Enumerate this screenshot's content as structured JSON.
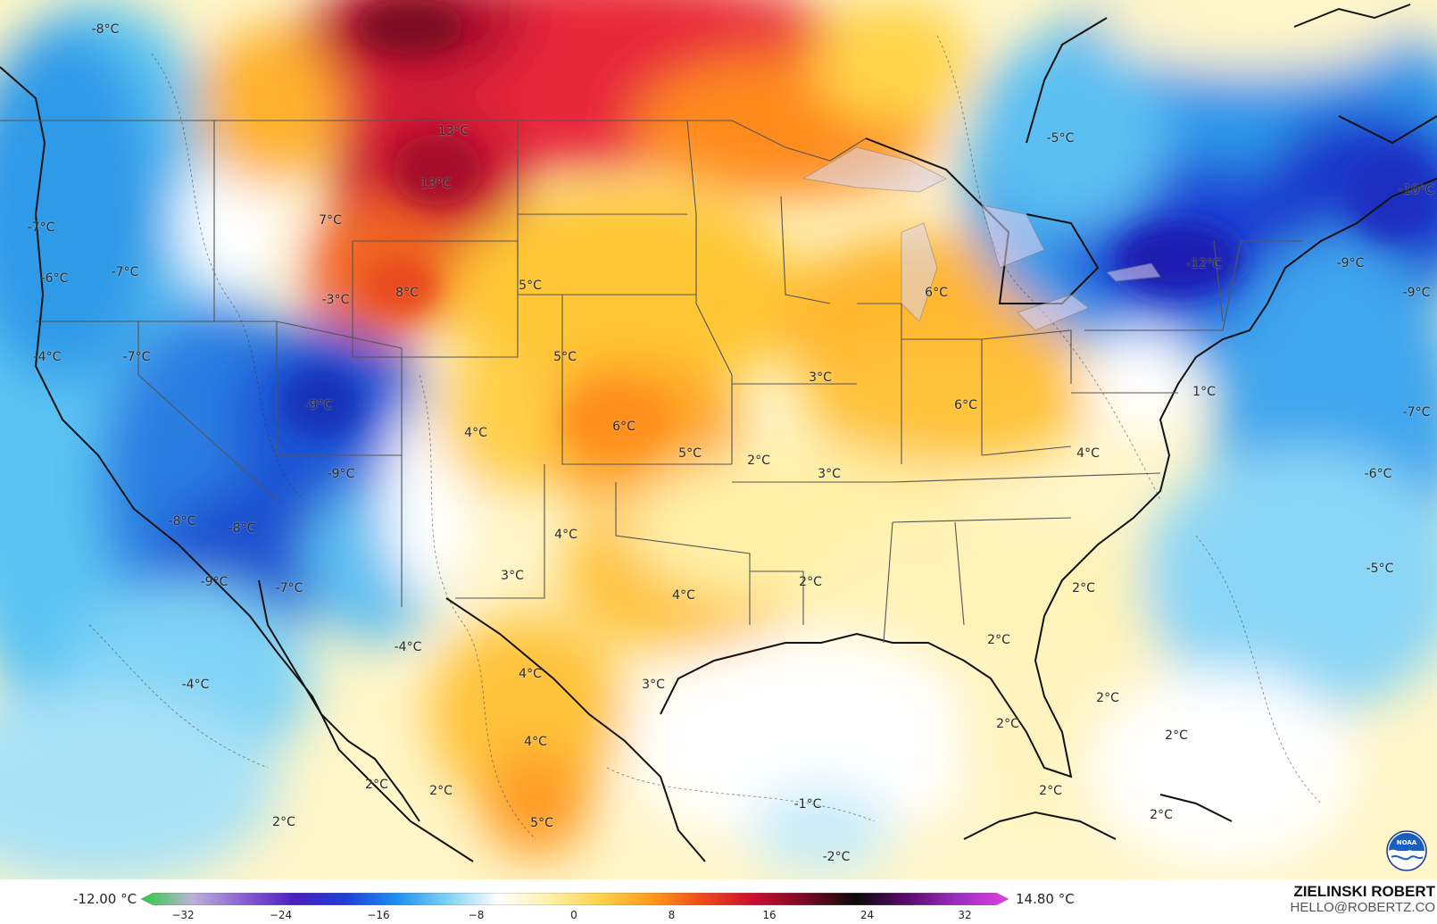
{
  "legend": {
    "min_value": "-12.00 °C",
    "max_value": "14.80 °C",
    "ticks": [
      "−32",
      "−24",
      "−16",
      "−8",
      "0",
      "8",
      "16",
      "24",
      "32"
    ],
    "colors": [
      "#2ecc40",
      "#b9b3d8",
      "#8a60d0",
      "#4b1fc0",
      "#1d3fd8",
      "#1d8ff0",
      "#7fd2f5",
      "#ffffff",
      "#fff1a8",
      "#ffd24a",
      "#ff9a1a",
      "#f04a1a",
      "#c8102e",
      "#7a0a24",
      "#0a0a0a",
      "#5b0a6b",
      "#9b2fc0",
      "#e23fe0"
    ]
  },
  "credit": {
    "name": "ZIELINSKI ROBERT",
    "email": "HELLO@ROBERTZ.CO"
  },
  "logo": {
    "icon": "noaa-logo-icon",
    "text": "NOAA"
  },
  "temperature_labels": [
    {
      "text": "-8°C"
    },
    {
      "text": "13°C"
    },
    {
      "text": "13°C"
    },
    {
      "text": "7°C"
    },
    {
      "text": "-5°C"
    },
    {
      "text": "-10°C"
    },
    {
      "text": "-7°C"
    },
    {
      "text": "-7°C"
    },
    {
      "text": "-6°C"
    },
    {
      "text": "-3°C"
    },
    {
      "text": "8°C"
    },
    {
      "text": "5°C"
    },
    {
      "text": "-12°C"
    },
    {
      "text": "-9°C"
    },
    {
      "text": "-9°C"
    },
    {
      "text": "6°C"
    },
    {
      "text": "-4°C"
    },
    {
      "text": "-7°C"
    },
    {
      "text": "5°C"
    },
    {
      "text": "3°C"
    },
    {
      "text": "-9°C"
    },
    {
      "text": "6°C"
    },
    {
      "text": "1°C"
    },
    {
      "text": "-7°C"
    },
    {
      "text": "4°C"
    },
    {
      "text": "6°C"
    },
    {
      "text": "5°C"
    },
    {
      "text": "2°C"
    },
    {
      "text": "4°C"
    },
    {
      "text": "-9°C"
    },
    {
      "text": "3°C"
    },
    {
      "text": "-6°C"
    },
    {
      "text": "-8°C"
    },
    {
      "text": "-8°C"
    },
    {
      "text": "4°C"
    },
    {
      "text": "-9°C"
    },
    {
      "text": "-7°C"
    },
    {
      "text": "3°C"
    },
    {
      "text": "2°C"
    },
    {
      "text": "2°C"
    },
    {
      "text": "-5°C"
    },
    {
      "text": "4°C"
    },
    {
      "text": "2°C"
    },
    {
      "text": "-4°C"
    },
    {
      "text": "4°C"
    },
    {
      "text": "-4°C"
    },
    {
      "text": "3°C"
    },
    {
      "text": "2°C"
    },
    {
      "text": "4°C"
    },
    {
      "text": "2°C"
    },
    {
      "text": "2°C"
    },
    {
      "text": "2°C"
    },
    {
      "text": "2°C"
    },
    {
      "text": "-1°C"
    },
    {
      "text": "2°C"
    },
    {
      "text": "5°C"
    },
    {
      "text": "2°C"
    },
    {
      "text": "2°C"
    },
    {
      "text": "-2°C"
    }
  ]
}
